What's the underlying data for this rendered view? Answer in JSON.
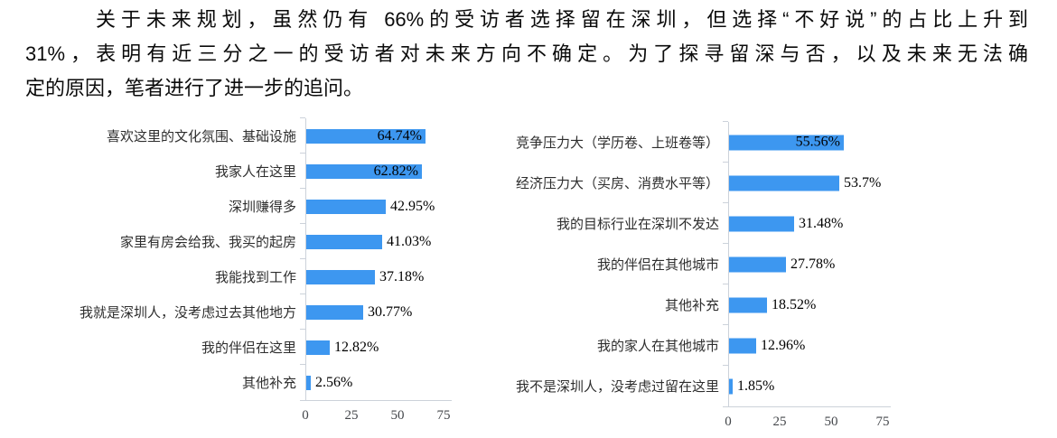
{
  "paragraph": {
    "lines": [
      "关于未来规划，虽然仍有 66%的受访者选择留在深圳，但选择“不好说”的占比上升到",
      "31%，表明有近三分之一的受访者对未来方向不确定。为了探寻留深与否，以及未来无法确",
      "定的原因，笔者进行了进一步的追问。"
    ]
  },
  "chart_data": [
    {
      "type": "bar",
      "orientation": "horizontal",
      "categories": [
        "喜欢这里的文化氛围、基础设施",
        "我家人在这里",
        "深圳赚得多",
        "家里有房会给我、我买的起房",
        "我能找到工作",
        "我就是深圳人，没考虑过去其他地方",
        "我的伴侣在这里",
        "其他补充"
      ],
      "values": [
        64.74,
        62.82,
        42.95,
        41.03,
        37.18,
        30.77,
        12.82,
        2.56
      ],
      "value_labels": [
        "64.74%",
        "62.82%",
        "42.95%",
        "41.03%",
        "37.18%",
        "30.77%",
        "12.82%",
        "2.56%"
      ],
      "label_inside": [
        true,
        true,
        false,
        false,
        false,
        false,
        false,
        false
      ],
      "xlim": [
        0,
        75
      ],
      "x_ticks": [
        0,
        25,
        50,
        75
      ],
      "bar_color": "#3D97F0",
      "axis_color": "#ccd2da",
      "grid": false,
      "legend": false
    },
    {
      "type": "bar",
      "orientation": "horizontal",
      "categories": [
        "竞争压力大（学历卷、上班卷等）",
        "经济压力大（买房、消费水平等）",
        "我的目标行业在深圳不发达",
        "我的伴侣在其他城市",
        "其他补充",
        "我的家人在其他城市",
        "我不是深圳人，没考虑过留在这里"
      ],
      "values": [
        55.56,
        53.7,
        31.48,
        27.78,
        18.52,
        12.96,
        1.85
      ],
      "value_labels": [
        "55.56%",
        "53.7%",
        "31.48%",
        "27.78%",
        "18.52%",
        "12.96%",
        "1.85%"
      ],
      "label_inside": [
        true,
        false,
        false,
        false,
        false,
        false,
        false
      ],
      "xlim": [
        0,
        75
      ],
      "x_ticks": [
        0,
        25,
        50,
        75
      ],
      "bar_color": "#3D97F0",
      "axis_color": "#ccd2da",
      "grid": false,
      "legend": false
    }
  ]
}
